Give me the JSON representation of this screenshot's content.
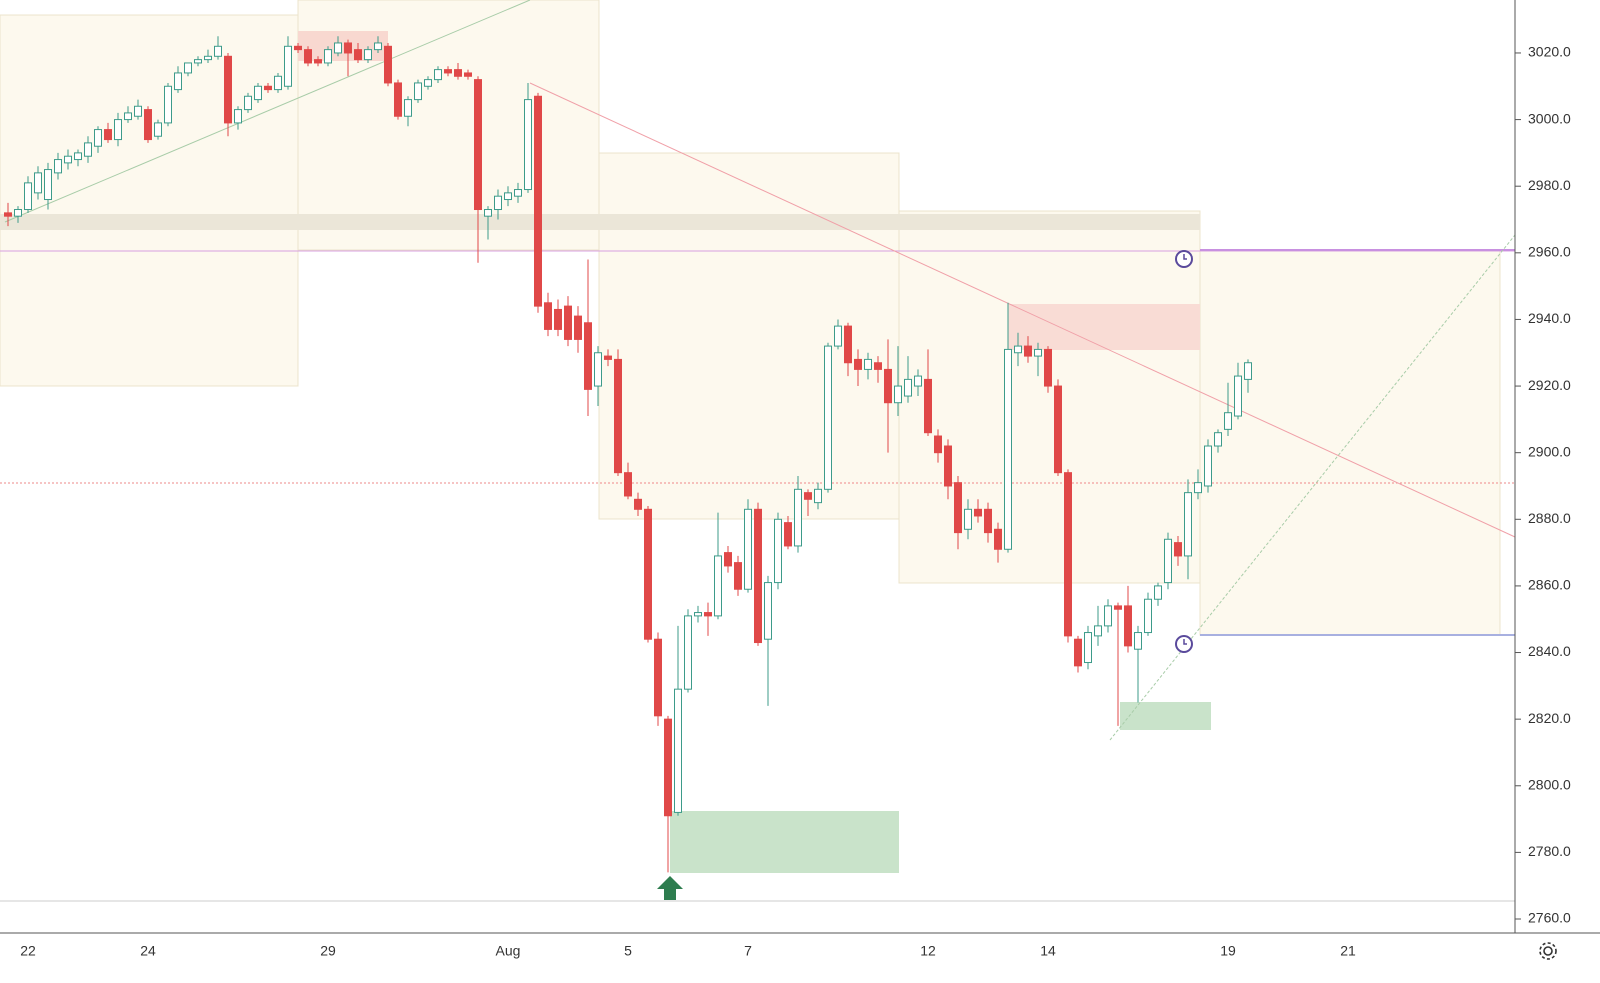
{
  "chart_data": {
    "type": "candlestick",
    "categories": [
      null,
      null,
      "22",
      null,
      null,
      null,
      null,
      null,
      null,
      null,
      null,
      null,
      null,
      null,
      "24",
      null,
      null,
      null,
      null,
      null,
      null,
      null,
      null,
      null,
      null,
      null,
      null,
      null,
      null,
      null,
      null,
      null,
      "29",
      null,
      null,
      null,
      null,
      null,
      null,
      null,
      null,
      null,
      null,
      null,
      null,
      null,
      null,
      null,
      null,
      null,
      "Aug",
      null,
      null,
      null,
      null,
      null,
      null,
      null,
      null,
      null,
      null,
      null,
      "5",
      null,
      null,
      null,
      null,
      null,
      null,
      null,
      null,
      null,
      null,
      null,
      "7",
      null,
      null,
      null,
      null,
      null,
      null,
      null,
      null,
      null,
      null,
      null,
      null,
      null,
      null,
      null,
      null,
      null,
      "12",
      null,
      null,
      null,
      null,
      null,
      null,
      null,
      null,
      null,
      null,
      null,
      "14",
      null,
      null,
      null,
      null,
      null,
      null,
      null,
      null,
      null,
      null,
      null,
      null,
      null,
      null,
      null,
      null,
      null,
      "19",
      null,
      null,
      null,
      null,
      null,
      null,
      null,
      null,
      null,
      null,
      null,
      "21",
      null,
      null,
      null,
      null,
      null,
      null,
      null,
      null,
      null,
      null,
      null,
      null,
      null,
      null,
      null
    ],
    "open": [
      2972,
      2971,
      2973,
      2978,
      2976,
      2984,
      2987,
      2988,
      2989,
      2992,
      2997,
      2994,
      3000,
      3001,
      3003,
      2995,
      2999,
      3009,
      3014,
      3017,
      3018,
      3019,
      3019,
      2999,
      3003,
      3006,
      3010,
      3009,
      3010,
      3022,
      3021,
      3018,
      3017,
      3020,
      3023,
      3021,
      3018,
      3021,
      3022,
      3011,
      3001,
      3006,
      3010,
      3012,
      3015,
      3015,
      3014,
      3012,
      2971,
      2973,
      2976,
      2977,
      2979,
      3007,
      2945,
      2943,
      2944,
      2941,
      2939,
      2920,
      2929,
      2928,
      2894,
      2886,
      2883,
      2844,
      2820,
      2792,
      2829,
      2851,
      2852,
      2851,
      2870,
      2867,
      2859,
      2883,
      2844,
      2861,
      2879,
      2872,
      2888,
      2885,
      2889,
      2932,
      2938,
      2928,
      2925,
      2927,
      2925,
      2915,
      2917,
      2920,
      2922,
      2905,
      2902,
      2891,
      2877,
      2883,
      2883,
      2877,
      2871,
      2930,
      2932,
      2929,
      2931,
      2920,
      2894,
      2844,
      2837,
      2845,
      2848,
      2854,
      2854,
      2841,
      2846,
      2856,
      2861,
      2873,
      2869,
      2888,
      2890,
      2902,
      2907,
      2911,
      2922,
      null,
      null,
      null,
      null,
      null,
      null,
      null,
      null,
      null,
      null,
      null,
      null,
      null,
      null,
      null,
      null,
      null,
      null,
      null,
      null,
      null,
      null,
      null,
      null,
      null
    ],
    "high": [
      2975,
      2974,
      2983,
      2986,
      2987,
      2990,
      2991,
      2991,
      2995,
      2998,
      2999,
      3002,
      3004,
      3006,
      3004,
      3000,
      3011,
      3016,
      3017,
      3019,
      3021,
      3025,
      3020,
      3004,
      3008,
      3011,
      3011,
      3014,
      3025,
      3023,
      3022,
      3019,
      3022,
      3025,
      3024,
      3023,
      3022,
      3025,
      3023,
      3012,
      3007,
      3012,
      3013,
      3016,
      3016,
      3017,
      3015,
      3013,
      2974,
      2979,
      2980,
      2981,
      3011,
      3008,
      2948,
      2946,
      2947,
      2944,
      2958,
      2932,
      2931,
      2931,
      2897,
      2888,
      2884,
      2846,
      2821,
      2848,
      2853,
      2854,
      2855,
      2882,
      2872,
      2869,
      2886,
      2885,
      2863,
      2882,
      2881,
      2893,
      2889,
      2891,
      2933,
      2940,
      2939,
      2931,
      2930,
      2929,
      2934,
      2932,
      2929,
      2925,
      2931,
      2907,
      2904,
      2893,
      2886,
      2886,
      2885,
      2879,
      2945,
      2936,
      2935,
      2933,
      2932,
      2922,
      2895,
      2845,
      2848,
      2854,
      2856,
      2855,
      2860,
      2848,
      2858,
      2861,
      2876,
      2875,
      2892,
      2895,
      2904,
      2907,
      2921,
      2927,
      2928,
      null,
      null,
      null,
      null,
      null,
      null,
      null,
      null,
      null,
      null,
      null,
      null,
      null,
      null,
      null,
      null,
      null,
      null,
      null,
      null,
      null,
      null,
      null,
      null,
      null
    ],
    "low": [
      2968,
      2969,
      2972,
      2976,
      2973,
      2982,
      2985,
      2986,
      2987,
      2990,
      2993,
      2992,
      2999,
      3000,
      2993,
      2994,
      2998,
      3008,
      3013,
      3016,
      3017,
      3018,
      2995,
      2997,
      3002,
      3005,
      3008,
      3008,
      3009,
      3020,
      3016,
      3016,
      3016,
      3019,
      3013,
      3017,
      3017,
      3020,
      3010,
      3000,
      2998,
      3005,
      3009,
      3011,
      3013,
      3012,
      3012,
      2957,
      2964,
      2970,
      2974,
      2975,
      2978,
      2942,
      2935,
      2935,
      2932,
      2930,
      2911,
      2914,
      2926,
      2893,
      2886,
      2881,
      2843,
      2818,
      2774,
      2791,
      2828,
      2849,
      2845,
      2850,
      2864,
      2857,
      2858,
      2842,
      2824,
      2859,
      2871,
      2870,
      2881,
      2883,
      2888,
      2931,
      2923,
      2920,
      2922,
      2921,
      2900,
      2911,
      2915,
      2917,
      2905,
      2897,
      2886,
      2871,
      2874,
      2879,
      2873,
      2867,
      2870,
      2926,
      2927,
      2923,
      2918,
      2893,
      2843,
      2834,
      2835,
      2842,
      2846,
      2818,
      2840,
      2825,
      2845,
      2854,
      2859,
      2866,
      2862,
      2886,
      2888,
      2900,
      2905,
      2910,
      2918,
      null,
      null,
      null,
      null,
      null,
      null,
      null,
      null,
      null,
      null,
      null,
      null,
      null,
      null,
      null,
      null,
      null,
      null,
      null,
      null,
      null,
      null,
      null,
      null,
      null
    ],
    "close": [
      2971,
      2973,
      2981,
      2984,
      2985,
      2988,
      2989,
      2990,
      2993,
      2997,
      2994,
      3000,
      3002,
      3004,
      2994,
      2999,
      3010,
      3014,
      3017,
      3018,
      3019,
      3022,
      2999,
      3003,
      3007,
      3010,
      3009,
      3013,
      3022,
      3021,
      3017,
      3017,
      3021,
      3023,
      3020,
      3018,
      3021,
      3023,
      3011,
      3001,
      3006,
      3011,
      3012,
      3015,
      3014,
      3013,
      3013,
      2973,
      2973,
      2977,
      2978,
      2979,
      3006,
      2944,
      2937,
      2937,
      2934,
      2934,
      2919,
      2930,
      2928,
      2894,
      2887,
      2883,
      2844,
      2821,
      2791,
      2829,
      2851,
      2852,
      2851,
      2869,
      2866,
      2859,
      2883,
      2843,
      2861,
      2880,
      2872,
      2889,
      2886,
      2889,
      2932,
      2938,
      2927,
      2925,
      2928,
      2925,
      2915,
      2920,
      2922,
      2923,
      2906,
      2900,
      2890,
      2876,
      2883,
      2881,
      2876,
      2871,
      2931,
      2932,
      2929,
      2931,
      2920,
      2894,
      2845,
      2836,
      2846,
      2848,
      2854,
      2853,
      2842,
      2846,
      2856,
      2860,
      2874,
      2869,
      2888,
      2891,
      2902,
      2906,
      2912,
      2923,
      2927,
      null,
      null,
      null,
      null,
      null,
      null,
      null,
      null,
      null,
      null,
      null,
      null,
      null,
      null,
      null,
      null,
      null,
      null,
      null,
      null,
      null,
      null,
      null,
      null,
      null
    ],
    "up_color": "#3d9b8a",
    "down_color": "#e04848",
    "ylim": [
      2755.8,
      3035.9
    ],
    "yticks": [
      {
        "value": 2760,
        "label": "2760.0"
      },
      {
        "value": 2780,
        "label": "2780.0"
      },
      {
        "value": 2800,
        "label": "2800.0"
      },
      {
        "value": 2820,
        "label": "2820.0"
      },
      {
        "value": 2840,
        "label": "2840.0"
      },
      {
        "value": 2860,
        "label": "2860.0"
      },
      {
        "value": 2880,
        "label": "2880.0"
      },
      {
        "value": 2900,
        "label": "2900.0"
      },
      {
        "value": 2920,
        "label": "2920.0"
      },
      {
        "value": 2940,
        "label": "2940.0"
      },
      {
        "value": 2960,
        "label": "2960.0"
      },
      {
        "value": 2980,
        "label": "2980.0"
      },
      {
        "value": 3000,
        "label": "3000.0"
      },
      {
        "value": 3020,
        "label": "3020.0"
      }
    ],
    "grid": false
  }
}
